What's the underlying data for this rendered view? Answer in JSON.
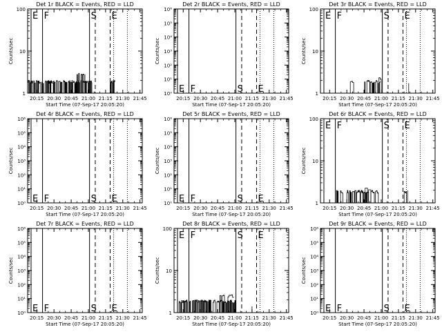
{
  "chart_data": [
    {
      "type": "line",
      "title": "Det 1r BLACK = Events, RED = LLD",
      "xlabel": "Start Time (07-Sep-17 20:05:20)",
      "ylabel": "Counts/sec",
      "yscale": "log",
      "ylim": [
        1,
        100
      ],
      "y_tick_labels": [
        "1",
        "10",
        "100"
      ],
      "x_tick_labels": [
        "20:15",
        "20:30",
        "20:45",
        "21:00",
        "21:15",
        "21:30",
        "21:45"
      ],
      "x_minutes": [
        20.0,
        35.0,
        50.0,
        65.0,
        80.0,
        95.0,
        110.0
      ],
      "xlim_minutes": [
        12.0,
        112.0
      ],
      "markers": [
        {
          "label": "E",
          "x_min": 15.0,
          "style": "solid",
          "y_label": "top"
        },
        {
          "label": "F",
          "x_min": 25.0,
          "style": "solid",
          "y_label": "top"
        },
        {
          "label": "S",
          "x_min": 66.0,
          "style": "solid",
          "y_label": "top"
        },
        {
          "label": "",
          "x_min": 71.0,
          "style": "dashed",
          "y_label": "top"
        },
        {
          "label": "E",
          "x_min": 84.0,
          "style": "dashed",
          "y_label": "top"
        },
        {
          "label": "",
          "x_min": 87.0,
          "style": "dotted",
          "y_label": "top"
        },
        {
          "label": "",
          "x_min": 99.0,
          "style": "dotted",
          "y_label": "top"
        }
      ],
      "series": [
        {
          "segments": [
            {
              "x_start": 12.0,
              "x_end": 69.0,
              "y_low": 1.0,
              "y_high": 2.0,
              "density": 3
            },
            {
              "x_start": 55.0,
              "x_end": 62.0,
              "y_low": 1.0,
              "y_high": 3.0,
              "density": 2
            },
            {
              "x_start": 84.0,
              "x_end": 88.0,
              "y_low": 1.0,
              "y_high": 2.0,
              "density": 2
            }
          ]
        }
      ]
    },
    {
      "type": "line",
      "title": "Det 2r BLACK = Events, RED = LLD",
      "xlabel": "Start Time (07-Sep-17 20:05:20)",
      "ylabel": "Counts/sec",
      "yscale": "log",
      "ylim": [
        1,
        1000000
      ],
      "y_tick_labels": [
        "10⁰",
        "10¹",
        "10²",
        "10³",
        "10⁴",
        "10⁵",
        "10⁶"
      ],
      "x_tick_labels": [
        "20:15",
        "20:30",
        "20:45",
        "21:00",
        "21:15",
        "21:30",
        "21:45"
      ],
      "x_minutes": [
        20.0,
        35.0,
        50.0,
        65.0,
        80.0,
        95.0,
        110.0
      ],
      "xlim_minutes": [
        12.0,
        112.0
      ],
      "markers": [
        {
          "label": "E",
          "x_min": 15.0,
          "style": "solid",
          "y_label": "bottom"
        },
        {
          "label": "F",
          "x_min": 25.0,
          "style": "solid",
          "y_label": "bottom"
        },
        {
          "label": "S",
          "x_min": 66.0,
          "style": "solid",
          "y_label": "bottom"
        },
        {
          "label": "",
          "x_min": 71.0,
          "style": "dashed",
          "y_label": "bottom"
        },
        {
          "label": "E",
          "x_min": 84.0,
          "style": "dashed",
          "y_label": "bottom"
        },
        {
          "label": "",
          "x_min": 87.0,
          "style": "dotted",
          "y_label": "bottom"
        },
        {
          "label": "",
          "x_min": 99.0,
          "style": "dotted",
          "y_label": "bottom"
        }
      ],
      "series": []
    },
    {
      "type": "line",
      "title": "Det 3r BLACK = Events, RED = LLD",
      "xlabel": "Start Time (07-Sep-17 20:05:20)",
      "ylabel": "Counts/sec",
      "yscale": "log",
      "ylim": [
        1,
        100
      ],
      "y_tick_labels": [
        "1",
        "10",
        "100"
      ],
      "x_tick_labels": [
        "20:15",
        "20:30",
        "20:45",
        "21:00",
        "21:15",
        "21:30",
        "21:45"
      ],
      "x_minutes": [
        20.0,
        35.0,
        50.0,
        65.0,
        80.0,
        95.0,
        110.0
      ],
      "xlim_minutes": [
        12.0,
        112.0
      ],
      "markers": [
        {
          "label": "E",
          "x_min": 15.0,
          "style": "solid",
          "y_label": "top"
        },
        {
          "label": "F",
          "x_min": 25.0,
          "style": "solid",
          "y_label": "top"
        },
        {
          "label": "S",
          "x_min": 66.0,
          "style": "solid",
          "y_label": "top"
        },
        {
          "label": "",
          "x_min": 71.0,
          "style": "dashed",
          "y_label": "top"
        },
        {
          "label": "E",
          "x_min": 84.0,
          "style": "dashed",
          "y_label": "top"
        },
        {
          "label": "",
          "x_min": 87.0,
          "style": "dotted",
          "y_label": "top"
        },
        {
          "label": "",
          "x_min": 99.0,
          "style": "dotted",
          "y_label": "top"
        }
      ],
      "series": [
        {
          "segments": [
            {
              "x_start": 38.0,
              "x_end": 42.0,
              "y_low": 1.0,
              "y_high": 2.0,
              "density": 1
            },
            {
              "x_start": 50.0,
              "x_end": 64.0,
              "y_low": 1.0,
              "y_high": 2.0,
              "density": 2
            },
            {
              "x_start": 60.0,
              "x_end": 66.0,
              "y_low": 1.0,
              "y_high": 2.5,
              "density": 1
            },
            {
              "x_start": 85.0,
              "x_end": 89.0,
              "y_low": 1.0,
              "y_high": 2.0,
              "density": 1
            }
          ]
        }
      ]
    },
    {
      "type": "line",
      "title": "Det 4r BLACK = Events, RED = LLD",
      "xlabel": "Start Time (07-Sep-17 20:05:20)",
      "ylabel": "Counts/sec",
      "yscale": "log",
      "ylim": [
        1,
        1000000
      ],
      "y_tick_labels": [
        "10⁰",
        "10¹",
        "10²",
        "10³",
        "10⁴",
        "10⁵",
        "10⁶"
      ],
      "x_tick_labels": [
        "20:15",
        "20:30",
        "20:45",
        "21:00",
        "21:15",
        "21:30",
        "21:45"
      ],
      "x_minutes": [
        20.0,
        35.0,
        50.0,
        65.0,
        80.0,
        95.0,
        110.0
      ],
      "xlim_minutes": [
        12.0,
        112.0
      ],
      "markers": [
        {
          "label": "E",
          "x_min": 15.0,
          "style": "solid",
          "y_label": "bottom"
        },
        {
          "label": "F",
          "x_min": 25.0,
          "style": "solid",
          "y_label": "bottom"
        },
        {
          "label": "S",
          "x_min": 66.0,
          "style": "solid",
          "y_label": "bottom"
        },
        {
          "label": "",
          "x_min": 71.0,
          "style": "dashed",
          "y_label": "bottom"
        },
        {
          "label": "E",
          "x_min": 84.0,
          "style": "dashed",
          "y_label": "bottom"
        },
        {
          "label": "",
          "x_min": 87.0,
          "style": "dotted",
          "y_label": "bottom"
        },
        {
          "label": "",
          "x_min": 99.0,
          "style": "dotted",
          "y_label": "bottom"
        }
      ],
      "series": []
    },
    {
      "type": "line",
      "title": "Det 5r BLACK = Events, RED = LLD",
      "xlabel": "Start Time (07-Sep-17 20:05:20)",
      "ylabel": "Counts/sec",
      "yscale": "log",
      "ylim": [
        1,
        1000000
      ],
      "y_tick_labels": [
        "10⁰",
        "10¹",
        "10²",
        "10³",
        "10⁴",
        "10⁵",
        "10⁶"
      ],
      "x_tick_labels": [
        "20:15",
        "20:30",
        "20:45",
        "21:00",
        "21:15",
        "21:30",
        "21:45"
      ],
      "x_minutes": [
        20.0,
        35.0,
        50.0,
        65.0,
        80.0,
        95.0,
        110.0
      ],
      "xlim_minutes": [
        12.0,
        112.0
      ],
      "markers": [
        {
          "label": "E",
          "x_min": 15.0,
          "style": "solid",
          "y_label": "bottom"
        },
        {
          "label": "F",
          "x_min": 25.0,
          "style": "solid",
          "y_label": "bottom"
        },
        {
          "label": "S",
          "x_min": 66.0,
          "style": "solid",
          "y_label": "bottom"
        },
        {
          "label": "",
          "x_min": 71.0,
          "style": "dashed",
          "y_label": "bottom"
        },
        {
          "label": "E",
          "x_min": 84.0,
          "style": "dashed",
          "y_label": "bottom"
        },
        {
          "label": "",
          "x_min": 87.0,
          "style": "dotted",
          "y_label": "bottom"
        },
        {
          "label": "",
          "x_min": 99.0,
          "style": "dotted",
          "y_label": "bottom"
        }
      ],
      "series": []
    },
    {
      "type": "line",
      "title": "Det 6r BLACK = Events, RED = LLD",
      "xlabel": "Start Time (07-Sep-17 20:05:20)",
      "ylabel": "Counts/sec",
      "yscale": "log",
      "ylim": [
        1,
        100
      ],
      "y_tick_labels": [
        "1",
        "10",
        "100"
      ],
      "x_tick_labels": [
        "20:15",
        "20:30",
        "20:45",
        "21:00",
        "21:15",
        "21:30",
        "21:45"
      ],
      "x_minutes": [
        20.0,
        35.0,
        50.0,
        65.0,
        80.0,
        95.0,
        110.0
      ],
      "xlim_minutes": [
        12.0,
        112.0
      ],
      "markers": [
        {
          "label": "E",
          "x_min": 15.0,
          "style": "solid",
          "y_label": "top"
        },
        {
          "label": "F",
          "x_min": 25.0,
          "style": "solid",
          "y_label": "top"
        },
        {
          "label": "S",
          "x_min": 66.0,
          "style": "solid",
          "y_label": "top"
        },
        {
          "label": "",
          "x_min": 71.0,
          "style": "dashed",
          "y_label": "top"
        },
        {
          "label": "E",
          "x_min": 84.0,
          "style": "dashed",
          "y_label": "top"
        },
        {
          "label": "",
          "x_min": 87.0,
          "style": "dotted",
          "y_label": "top"
        },
        {
          "label": "",
          "x_min": 99.0,
          "style": "dotted",
          "y_label": "top"
        }
      ],
      "series": [
        {
          "segments": [
            {
              "x_start": 26.0,
              "x_end": 64.0,
              "y_low": 1.0,
              "y_high": 2.0,
              "density": 2
            },
            {
              "x_start": 50.0,
              "x_end": 58.0,
              "y_low": 1.0,
              "y_high": 2.4,
              "density": 1
            },
            {
              "x_start": 84.0,
              "x_end": 88.0,
              "y_low": 1.0,
              "y_high": 2.0,
              "density": 2
            }
          ]
        }
      ]
    },
    {
      "type": "line",
      "title": "Det 7r BLACK = Events, RED = LLD",
      "xlabel": "Start Time (07-Sep-17 20:05:20)",
      "ylabel": "Counts/sec",
      "yscale": "log",
      "ylim": [
        1,
        1000000
      ],
      "y_tick_labels": [
        "10⁰",
        "10¹",
        "10²",
        "10³",
        "10⁴",
        "10⁵",
        "10⁶"
      ],
      "x_tick_labels": [
        "20:15",
        "20:30",
        "20:45",
        "21:00",
        "21:15",
        "21:30",
        "21:45"
      ],
      "x_minutes": [
        20.0,
        35.0,
        50.0,
        65.0,
        80.0,
        95.0,
        110.0
      ],
      "xlim_minutes": [
        12.0,
        112.0
      ],
      "markers": [
        {
          "label": "E",
          "x_min": 15.0,
          "style": "solid",
          "y_label": "bottom"
        },
        {
          "label": "F",
          "x_min": 25.0,
          "style": "solid",
          "y_label": "bottom"
        },
        {
          "label": "S",
          "x_min": 66.0,
          "style": "solid",
          "y_label": "bottom"
        },
        {
          "label": "",
          "x_min": 71.0,
          "style": "dashed",
          "y_label": "bottom"
        },
        {
          "label": "E",
          "x_min": 84.0,
          "style": "dashed",
          "y_label": "bottom"
        },
        {
          "label": "",
          "x_min": 87.0,
          "style": "dotted",
          "y_label": "bottom"
        },
        {
          "label": "",
          "x_min": 99.0,
          "style": "dotted",
          "y_label": "bottom"
        }
      ],
      "series": []
    },
    {
      "type": "line",
      "title": "Det 8r BLACK = Events, RED = LLD",
      "xlabel": "Start Time (07-Sep-17 20:05:20)",
      "ylabel": "Counts/sec",
      "yscale": "log",
      "ylim": [
        1,
        100
      ],
      "y_tick_labels": [
        "1",
        "10",
        "100"
      ],
      "x_tick_labels": [
        "20:15",
        "20:30",
        "20:45",
        "21:00",
        "21:15",
        "21:30",
        "21:45"
      ],
      "x_minutes": [
        20.0,
        35.0,
        50.0,
        65.0,
        80.0,
        95.0,
        110.0
      ],
      "xlim_minutes": [
        12.0,
        112.0
      ],
      "markers": [
        {
          "label": "E",
          "x_min": 15.0,
          "style": "solid",
          "y_label": "top"
        },
        {
          "label": "F",
          "x_min": 25.0,
          "style": "solid",
          "y_label": "top"
        },
        {
          "label": "S",
          "x_min": 66.0,
          "style": "solid",
          "y_label": "top"
        },
        {
          "label": "",
          "x_min": 71.0,
          "style": "dashed",
          "y_label": "top"
        },
        {
          "label": "E",
          "x_min": 84.0,
          "style": "dashed",
          "y_label": "top"
        },
        {
          "label": "",
          "x_min": 87.0,
          "style": "dotted",
          "y_label": "top"
        },
        {
          "label": "",
          "x_min": 99.0,
          "style": "dotted",
          "y_label": "top"
        }
      ],
      "series": [
        {
          "segments": [
            {
              "x_start": 16.0,
              "x_end": 66.0,
              "y_low": 1.0,
              "y_high": 2.0,
              "density": 3
            },
            {
              "x_start": 52.0,
              "x_end": 64.0,
              "y_low": 1.0,
              "y_high": 2.7,
              "density": 1
            },
            {
              "x_start": 78.0,
              "x_end": 80.0,
              "y_low": 1.0,
              "y_high": 1.6,
              "density": 1
            }
          ]
        }
      ]
    },
    {
      "type": "line",
      "title": "Det 9r BLACK = Events, RED = LLD",
      "xlabel": "Start Time (07-Sep-17 20:05:20)",
      "ylabel": "Counts/sec",
      "yscale": "log",
      "ylim": [
        1,
        1000000
      ],
      "y_tick_labels": [
        "10⁰",
        "10¹",
        "10²",
        "10³",
        "10⁴",
        "10⁵",
        "10⁶"
      ],
      "x_tick_labels": [
        "20:15",
        "20:30",
        "20:45",
        "21:00",
        "21:15",
        "21:30",
        "21:45"
      ],
      "x_minutes": [
        20.0,
        35.0,
        50.0,
        65.0,
        80.0,
        95.0,
        110.0
      ],
      "xlim_minutes": [
        12.0,
        112.0
      ],
      "markers": [
        {
          "label": "E",
          "x_min": 15.0,
          "style": "solid",
          "y_label": "bottom"
        },
        {
          "label": "F",
          "x_min": 25.0,
          "style": "solid",
          "y_label": "bottom"
        },
        {
          "label": "S",
          "x_min": 66.0,
          "style": "solid",
          "y_label": "bottom"
        },
        {
          "label": "",
          "x_min": 71.0,
          "style": "dashed",
          "y_label": "bottom"
        },
        {
          "label": "E",
          "x_min": 84.0,
          "style": "dashed",
          "y_label": "bottom"
        },
        {
          "label": "",
          "x_min": 87.0,
          "style": "dotted",
          "y_label": "bottom"
        },
        {
          "label": "",
          "x_min": 99.0,
          "style": "dotted",
          "y_label": "bottom"
        }
      ],
      "series": []
    }
  ]
}
